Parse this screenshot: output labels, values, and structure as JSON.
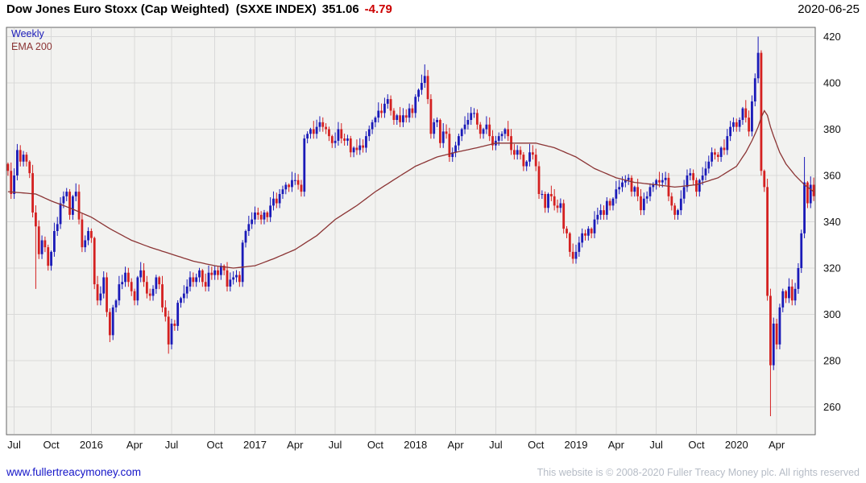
{
  "header": {
    "title": "Dow Jones Euro Stoxx (Cap Weighted)  (SXXE INDEX)",
    "last_price": "351.06",
    "change": "-4.79",
    "date": "2020-06-25"
  },
  "legend": {
    "timeframe": "Weekly",
    "overlay": "EMA 200"
  },
  "footer": {
    "site": "www.fullertreacymoney.com",
    "copyright": "This website is © 2008-2020 Fuller Treacy Money plc. All rights reserved"
  },
  "colors": {
    "up": "#1a1ab8",
    "down": "#d42020",
    "ema": "#8b3434",
    "grid": "#d9d9d9",
    "plot_bg": "#f2f2f0",
    "plot_border": "#666666",
    "change_neg": "#cc0000",
    "link": "#1515c8",
    "copyright": "#b6bcc6",
    "text": "#000000"
  },
  "chart_data": {
    "type": "candlestick",
    "title": "Dow Jones Euro Stoxx (Cap Weighted) (SXXE INDEX)",
    "frequency": "weekly",
    "x_start": "2015-06-26",
    "x_end": "2020-06-25",
    "last_close": 351.06,
    "overlay": "EMA 200",
    "grid": true,
    "legend_position": "top-left",
    "ylim": [
      248,
      424
    ],
    "y_ticks": [
      260,
      280,
      300,
      320,
      340,
      360,
      380,
      400,
      420
    ],
    "x_ticks": [
      [
        "Jul",
        2
      ],
      [
        "Oct",
        14
      ],
      [
        "2016",
        27
      ],
      [
        "Apr",
        41
      ],
      [
        "Jul",
        53
      ],
      [
        "Oct",
        67
      ],
      [
        "2017",
        80
      ],
      [
        "Apr",
        93
      ],
      [
        "Jul",
        106
      ],
      [
        "Oct",
        119
      ],
      [
        "2018",
        132
      ],
      [
        "Apr",
        145
      ],
      [
        "Jul",
        158
      ],
      [
        "Oct",
        171
      ],
      [
        "2019",
        184
      ],
      [
        "Apr",
        197
      ],
      [
        "Jul",
        210
      ],
      [
        "Oct",
        223
      ],
      [
        "2020",
        236
      ],
      [
        "Apr",
        249
      ]
    ],
    "first_open": 365,
    "closes": [
      362,
      352,
      360,
      371,
      366,
      369,
      366,
      361,
      344,
      338,
      326,
      332,
      329,
      321,
      327,
      336,
      339,
      348,
      351,
      353,
      343,
      351,
      353,
      341,
      329,
      332,
      336,
      333,
      313,
      306,
      309,
      316,
      301,
      291,
      303,
      306,
      313,
      314,
      318,
      314,
      310,
      306,
      316,
      319,
      314,
      309,
      308,
      311,
      316,
      313,
      303,
      299,
      287,
      296,
      295,
      305,
      307,
      309,
      312,
      316,
      314,
      316,
      319,
      314,
      312,
      318,
      317,
      319,
      317,
      321,
      319,
      312,
      315,
      316,
      317,
      314,
      331,
      336,
      339,
      341,
      344,
      343,
      341,
      344,
      342,
      347,
      350,
      348,
      352,
      354,
      356,
      355,
      358,
      358,
      356,
      353,
      376,
      378,
      380,
      378,
      381,
      383,
      381,
      380,
      377,
      374,
      375,
      380,
      376,
      375,
      376,
      370,
      372,
      371,
      373,
      372,
      377,
      380,
      383,
      385,
      388,
      387,
      391,
      393,
      388,
      384,
      386,
      383,
      386,
      385,
      389,
      387,
      394,
      397,
      400,
      403,
      393,
      378,
      383,
      384,
      374,
      379,
      378,
      368,
      370,
      373,
      377,
      380,
      382,
      384,
      387,
      387,
      382,
      378,
      380,
      382,
      377,
      373,
      375,
      377,
      378,
      380,
      377,
      371,
      369,
      371,
      369,
      364,
      366,
      370,
      369,
      364,
      352,
      352,
      346,
      352,
      351,
      347,
      346,
      348,
      337,
      335,
      327,
      324,
      327,
      331,
      335,
      334,
      337,
      335,
      341,
      343,
      345,
      343,
      349,
      347,
      350,
      354,
      355,
      357,
      358,
      359,
      353,
      355,
      351,
      345,
      350,
      351,
      355,
      356,
      358,
      357,
      358,
      359,
      351,
      347,
      343,
      345,
      350,
      355,
      360,
      361,
      358,
      353,
      358,
      360,
      363,
      366,
      370,
      369,
      368,
      372,
      371,
      377,
      381,
      383,
      381,
      384,
      389,
      385,
      379,
      392,
      402,
      413,
      362,
      355,
      308,
      278,
      296,
      287,
      303,
      310,
      307,
      312,
      306,
      311,
      320,
      335,
      357,
      348,
      356,
      351.06
    ],
    "wick_overrides": {
      "9": {
        "low": 311
      },
      "33": {
        "low": 288
      },
      "52": {
        "low": 283
      },
      "135": {
        "high": 408
      },
      "243": {
        "high": 420
      },
      "247": {
        "low": 256
      },
      "258": {
        "high": 368
      }
    },
    "ema_keyframes": [
      [
        0,
        353
      ],
      [
        9,
        352
      ],
      [
        14,
        349
      ],
      [
        20,
        346
      ],
      [
        27,
        342
      ],
      [
        33,
        337
      ],
      [
        40,
        332
      ],
      [
        46,
        329
      ],
      [
        53,
        326
      ],
      [
        60,
        323
      ],
      [
        67,
        321
      ],
      [
        73,
        320
      ],
      [
        80,
        321
      ],
      [
        86,
        324
      ],
      [
        93,
        328
      ],
      [
        100,
        334
      ],
      [
        106,
        341
      ],
      [
        113,
        347
      ],
      [
        119,
        353
      ],
      [
        126,
        359
      ],
      [
        132,
        364
      ],
      [
        139,
        368
      ],
      [
        145,
        370
      ],
      [
        152,
        372
      ],
      [
        158,
        374
      ],
      [
        165,
        374
      ],
      [
        171,
        374
      ],
      [
        177,
        372
      ],
      [
        184,
        368
      ],
      [
        190,
        363
      ],
      [
        197,
        359
      ],
      [
        203,
        357
      ],
      [
        210,
        356
      ],
      [
        216,
        355
      ],
      [
        223,
        356
      ],
      [
        230,
        359
      ],
      [
        236,
        364
      ],
      [
        239,
        370
      ],
      [
        241,
        375
      ],
      [
        243,
        381
      ],
      [
        244,
        385
      ],
      [
        245,
        388
      ],
      [
        246,
        386
      ],
      [
        247,
        381
      ],
      [
        248,
        377
      ],
      [
        250,
        370
      ],
      [
        252,
        365
      ],
      [
        255,
        360
      ],
      [
        258,
        356
      ],
      [
        261,
        353
      ]
    ]
  }
}
